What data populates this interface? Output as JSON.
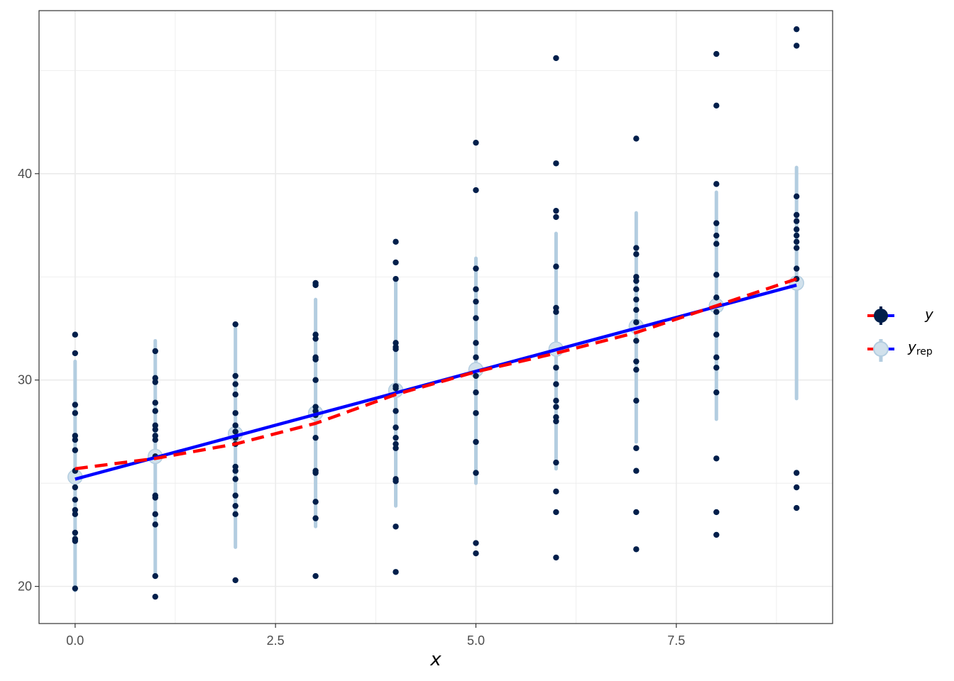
{
  "chart_data": {
    "type": "scatter",
    "title": "",
    "xlabel": "x",
    "ylabel": "",
    "xlim": [
      -0.45,
      9.45
    ],
    "ylim": [
      18.2,
      47.9
    ],
    "x_ticks": [
      0.0,
      2.5,
      5.0,
      7.5
    ],
    "x_tick_labels": [
      "0.0",
      "2.5",
      "5.0",
      "7.5"
    ],
    "y_ticks": [
      20,
      30,
      40
    ],
    "y_tick_labels": [
      "20",
      "30",
      "40"
    ],
    "grid": true,
    "legend_position": "right",
    "colors": {
      "y_points": "#011f4b",
      "yrep_intervals": "#b3cde0",
      "yrep_median_fill": "#d1e1ec",
      "line_y": "#0000ff",
      "line_yrep": "#ff0000",
      "grid": "#ebebeb",
      "panel_border": "#333333"
    },
    "series": [
      {
        "name": "y",
        "type": "scatter",
        "points": [
          [
            0,
            32.2
          ],
          [
            0,
            31.3
          ],
          [
            0,
            28.8
          ],
          [
            0,
            28.4
          ],
          [
            0,
            27.3
          ],
          [
            0,
            27.1
          ],
          [
            0,
            26.6
          ],
          [
            0,
            25.6
          ],
          [
            0,
            24.8
          ],
          [
            0,
            24.2
          ],
          [
            0,
            23.7
          ],
          [
            0,
            23.5
          ],
          [
            0,
            22.6
          ],
          [
            0,
            22.3
          ],
          [
            0,
            22.2
          ],
          [
            0,
            19.9
          ],
          [
            1,
            31.4
          ],
          [
            1,
            30.1
          ],
          [
            1,
            29.9
          ],
          [
            1,
            28.9
          ],
          [
            1,
            28.5
          ],
          [
            1,
            27.8
          ],
          [
            1,
            27.6
          ],
          [
            1,
            27.3
          ],
          [
            1,
            27.1
          ],
          [
            1,
            26.3
          ],
          [
            1,
            24.4
          ],
          [
            1,
            24.3
          ],
          [
            1,
            23.5
          ],
          [
            1,
            23.0
          ],
          [
            1,
            20.5
          ],
          [
            1,
            19.5
          ],
          [
            2,
            32.7
          ],
          [
            2,
            30.2
          ],
          [
            2,
            29.8
          ],
          [
            2,
            29.3
          ],
          [
            2,
            28.4
          ],
          [
            2,
            27.8
          ],
          [
            2,
            27.5
          ],
          [
            2,
            27.2
          ],
          [
            2,
            26.9
          ],
          [
            2,
            25.8
          ],
          [
            2,
            25.6
          ],
          [
            2,
            25.2
          ],
          [
            2,
            24.4
          ],
          [
            2,
            23.9
          ],
          [
            2,
            23.5
          ],
          [
            2,
            20.3
          ],
          [
            3,
            34.7
          ],
          [
            3,
            34.6
          ],
          [
            3,
            32.2
          ],
          [
            3,
            32.0
          ],
          [
            3,
            31.1
          ],
          [
            3,
            31.0
          ],
          [
            3,
            30.0
          ],
          [
            3,
            28.7
          ],
          [
            3,
            28.5
          ],
          [
            3,
            28.3
          ],
          [
            3,
            27.2
          ],
          [
            3,
            25.6
          ],
          [
            3,
            25.5
          ],
          [
            3,
            24.1
          ],
          [
            3,
            23.3
          ],
          [
            3,
            20.5
          ],
          [
            4,
            36.7
          ],
          [
            4,
            35.7
          ],
          [
            4,
            34.9
          ],
          [
            4,
            31.8
          ],
          [
            4,
            31.6
          ],
          [
            4,
            31.5
          ],
          [
            4,
            29.7
          ],
          [
            4,
            29.6
          ],
          [
            4,
            28.5
          ],
          [
            4,
            27.7
          ],
          [
            4,
            27.2
          ],
          [
            4,
            26.9
          ],
          [
            4,
            26.7
          ],
          [
            4,
            25.2
          ],
          [
            4,
            25.1
          ],
          [
            4,
            22.9
          ],
          [
            4,
            20.7
          ],
          [
            5,
            41.5
          ],
          [
            5,
            39.2
          ],
          [
            5,
            35.4
          ],
          [
            5,
            34.4
          ],
          [
            5,
            33.8
          ],
          [
            5,
            33.0
          ],
          [
            5,
            31.8
          ],
          [
            5,
            31.1
          ],
          [
            5,
            30.2
          ],
          [
            5,
            29.4
          ],
          [
            5,
            28.4
          ],
          [
            5,
            27.0
          ],
          [
            5,
            25.5
          ],
          [
            5,
            22.1
          ],
          [
            5,
            21.6
          ],
          [
            6,
            45.6
          ],
          [
            6,
            40.5
          ],
          [
            6,
            38.2
          ],
          [
            6,
            37.9
          ],
          [
            6,
            35.5
          ],
          [
            6,
            33.5
          ],
          [
            6,
            33.3
          ],
          [
            6,
            30.6
          ],
          [
            6,
            29.8
          ],
          [
            6,
            29.0
          ],
          [
            6,
            28.7
          ],
          [
            6,
            28.2
          ],
          [
            6,
            28.0
          ],
          [
            6,
            26.0
          ],
          [
            6,
            24.6
          ],
          [
            6,
            23.6
          ],
          [
            6,
            21.4
          ],
          [
            7,
            41.7
          ],
          [
            7,
            36.4
          ],
          [
            7,
            36.1
          ],
          [
            7,
            35.0
          ],
          [
            7,
            34.8
          ],
          [
            7,
            34.4
          ],
          [
            7,
            33.9
          ],
          [
            7,
            33.4
          ],
          [
            7,
            32.8
          ],
          [
            7,
            31.9
          ],
          [
            7,
            30.9
          ],
          [
            7,
            30.5
          ],
          [
            7,
            29.0
          ],
          [
            7,
            26.7
          ],
          [
            7,
            25.6
          ],
          [
            7,
            23.6
          ],
          [
            7,
            21.8
          ],
          [
            8,
            45.8
          ],
          [
            8,
            43.3
          ],
          [
            8,
            39.5
          ],
          [
            8,
            37.6
          ],
          [
            8,
            37.0
          ],
          [
            8,
            36.6
          ],
          [
            8,
            35.1
          ],
          [
            8,
            34.0
          ],
          [
            8,
            33.3
          ],
          [
            8,
            32.2
          ],
          [
            8,
            31.1
          ],
          [
            8,
            30.6
          ],
          [
            8,
            29.4
          ],
          [
            8,
            26.2
          ],
          [
            8,
            23.6
          ],
          [
            8,
            22.5
          ],
          [
            9,
            47.0
          ],
          [
            9,
            46.2
          ],
          [
            9,
            38.9
          ],
          [
            9,
            38.0
          ],
          [
            9,
            37.7
          ],
          [
            9,
            37.3
          ],
          [
            9,
            37.0
          ],
          [
            9,
            36.7
          ],
          [
            9,
            36.4
          ],
          [
            9,
            35.4
          ],
          [
            9,
            34.9
          ],
          [
            9,
            25.5
          ],
          [
            9,
            24.8
          ],
          [
            9,
            23.8
          ]
        ]
      },
      {
        "name": "yrep",
        "type": "intervals",
        "x": [
          0,
          1,
          2,
          3,
          4,
          5,
          6,
          7,
          8,
          9
        ],
        "median": [
          25.3,
          26.3,
          27.4,
          28.4,
          29.5,
          30.5,
          31.5,
          32.6,
          33.6,
          34.7
        ],
        "low": [
          19.8,
          20.6,
          21.9,
          22.9,
          23.9,
          25.0,
          25.7,
          27.0,
          28.1,
          29.1
        ],
        "high": [
          30.9,
          31.9,
          32.5,
          33.9,
          34.9,
          35.9,
          37.1,
          38.1,
          39.1,
          40.3
        ]
      },
      {
        "name": "y",
        "type": "line",
        "style": "solid",
        "x": [
          0,
          9
        ],
        "values": [
          25.2,
          34.6
        ]
      },
      {
        "name": "yrep",
        "type": "line",
        "style": "dashed",
        "x": [
          0,
          1,
          2,
          3,
          4,
          5,
          6,
          7,
          8,
          9
        ],
        "values": [
          25.7,
          26.2,
          26.9,
          27.9,
          29.3,
          30.4,
          31.3,
          32.3,
          33.6,
          34.9
        ]
      }
    ],
    "legend": [
      {
        "label": "y",
        "subscript": ""
      },
      {
        "label": "y",
        "subscript": "rep"
      }
    ]
  }
}
